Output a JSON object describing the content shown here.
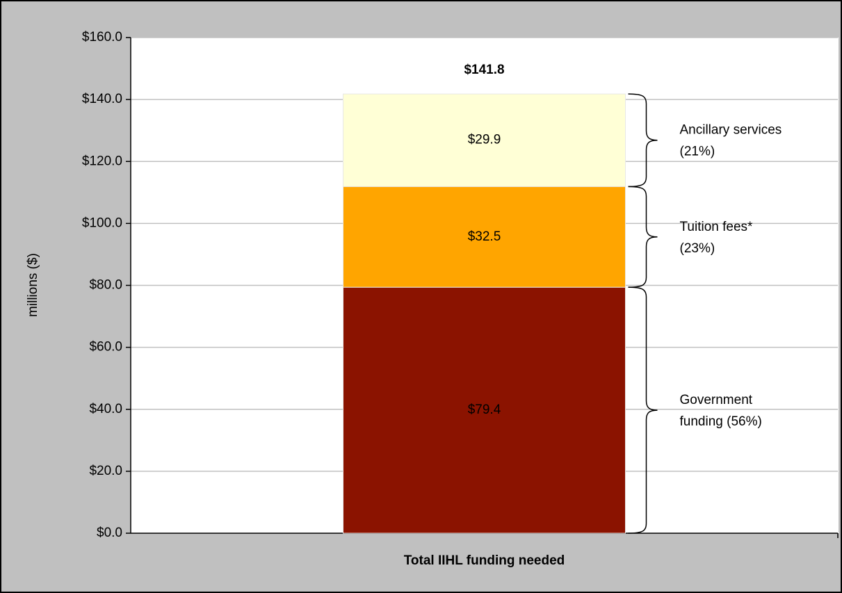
{
  "chart_data": {
    "type": "stacked_bar",
    "categories": [
      "Total IIHL funding needed"
    ],
    "ylabel": "millions ($)",
    "ylim": [
      0,
      160
    ],
    "yticks": [
      {
        "value": 0,
        "label": "$0.0"
      },
      {
        "value": 20,
        "label": "$20.0"
      },
      {
        "value": 40,
        "label": "$40.0"
      },
      {
        "value": 60,
        "label": "$60.0"
      },
      {
        "value": 80,
        "label": "$80.0"
      },
      {
        "value": 100,
        "label": "$100.0"
      },
      {
        "value": 120,
        "label": "$120.0"
      },
      {
        "value": 140,
        "label": "$140.0"
      },
      {
        "value": 160,
        "label": "$160.0"
      }
    ],
    "grid": true,
    "series": [
      {
        "name": "Government funding",
        "color": "#8b1300",
        "label_color": "#ffffff",
        "values": [
          79.4
        ],
        "value_labels": [
          "$79.4"
        ],
        "brace_lines": [
          "Government",
          "funding (56%)"
        ]
      },
      {
        "name": "Tuition fees*",
        "color": "#ffa500",
        "label_color": "#000000",
        "values": [
          32.5
        ],
        "value_labels": [
          "$32.5"
        ],
        "brace_lines": [
          "Tuition fees*",
          "(23%)"
        ]
      },
      {
        "name": "Ancillary services",
        "color": "#ffffd6",
        "label_color": "#000000",
        "values": [
          29.9
        ],
        "value_labels": [
          "$29.9"
        ],
        "brace_lines": [
          "Ancillary services",
          "(21%)"
        ]
      }
    ],
    "total": [
      141.8
    ],
    "total_labels": [
      "$141.8"
    ]
  }
}
